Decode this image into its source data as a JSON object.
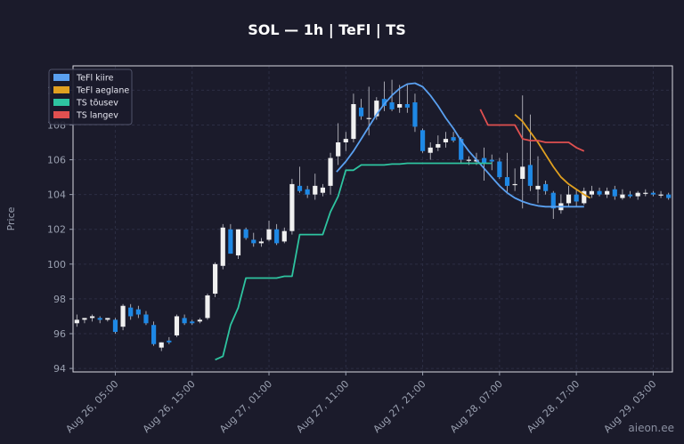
{
  "chart_data": {
    "type": "line",
    "title": "SOL — 1h  |  TeFl  |  TS",
    "ylabel": "Price",
    "xlabel": "",
    "ylim": [
      93.8,
      111.4
    ],
    "yticks": [
      94,
      96,
      98,
      100,
      102,
      104,
      106,
      108,
      110
    ],
    "xticks": [
      "Aug 26, 05:00",
      "Aug 26, 15:00",
      "Aug 27, 01:00",
      "Aug 27, 11:00",
      "Aug 27, 21:00",
      "Aug 28, 07:00",
      "Aug 28, 17:00",
      "Aug 29, 03:00"
    ],
    "xtick_index": [
      5,
      15,
      25,
      35,
      45,
      55,
      65,
      75
    ],
    "x_index_range": [
      -0.5,
      77.5
    ],
    "grid": true,
    "legend_position": "top-left",
    "candles": [
      [
        96.6,
        97.1,
        96.4,
        96.8
      ],
      [
        96.8,
        96.9,
        96.6,
        96.9
      ],
      [
        96.9,
        97.1,
        96.7,
        97.0
      ],
      [
        96.9,
        97.0,
        96.6,
        96.8
      ],
      [
        96.8,
        96.9,
        96.7,
        96.9
      ],
      [
        96.8,
        96.9,
        96.0,
        96.1
      ],
      [
        96.4,
        97.7,
        96.2,
        97.6
      ],
      [
        97.5,
        97.7,
        96.8,
        97.0
      ],
      [
        97.4,
        97.6,
        96.9,
        97.1
      ],
      [
        97.1,
        97.3,
        96.5,
        96.6
      ],
      [
        96.5,
        96.7,
        95.3,
        95.4
      ],
      [
        95.2,
        95.5,
        95.0,
        95.5
      ],
      [
        95.6,
        95.8,
        95.4,
        95.5
      ],
      [
        95.9,
        97.1,
        95.8,
        97.0
      ],
      [
        96.9,
        97.1,
        96.5,
        96.6
      ],
      [
        96.7,
        96.8,
        96.5,
        96.6
      ],
      [
        96.7,
        96.9,
        96.6,
        96.8
      ],
      [
        96.9,
        98.3,
        96.8,
        98.2
      ],
      [
        98.3,
        100.1,
        98.1,
        100.0
      ],
      [
        99.9,
        102.3,
        99.7,
        102.1
      ],
      [
        102.0,
        102.3,
        100.6,
        100.6
      ],
      [
        100.5,
        102.0,
        100.3,
        102.0
      ],
      [
        102.0,
        102.1,
        101.4,
        101.5
      ],
      [
        101.4,
        101.8,
        101.0,
        101.2
      ],
      [
        101.2,
        101.5,
        101.0,
        101.3
      ],
      [
        101.4,
        102.5,
        101.3,
        102.0
      ],
      [
        102.0,
        102.3,
        101.1,
        101.2
      ],
      [
        101.3,
        102.1,
        101.2,
        101.9
      ],
      [
        101.9,
        104.9,
        101.7,
        104.6
      ],
      [
        104.5,
        105.6,
        104.1,
        104.2
      ],
      [
        104.3,
        104.5,
        103.8,
        104.0
      ],
      [
        104.0,
        105.2,
        103.7,
        104.5
      ],
      [
        104.1,
        104.6,
        103.9,
        104.4
      ],
      [
        104.5,
        106.4,
        104.0,
        106.1
      ],
      [
        106.2,
        108.1,
        105.7,
        107.0
      ],
      [
        107.0,
        107.6,
        106.5,
        107.2
      ],
      [
        107.2,
        109.8,
        107.0,
        109.2
      ],
      [
        109.0,
        109.5,
        108.3,
        108.5
      ],
      [
        108.4,
        110.2,
        107.4,
        108.4
      ],
      [
        108.5,
        109.6,
        108.3,
        109.4
      ],
      [
        109.5,
        110.5,
        108.8,
        109.1
      ],
      [
        109.3,
        110.6,
        108.8,
        108.9
      ],
      [
        109.0,
        110.3,
        108.7,
        109.2
      ],
      [
        109.2,
        110.3,
        108.7,
        109.0
      ],
      [
        109.3,
        109.8,
        107.6,
        107.9
      ],
      [
        107.7,
        107.8,
        106.4,
        106.5
      ],
      [
        106.4,
        107.0,
        106.0,
        106.7
      ],
      [
        106.7,
        107.4,
        106.5,
        106.9
      ],
      [
        107.0,
        107.6,
        106.7,
        107.2
      ],
      [
        107.3,
        107.6,
        107.0,
        107.1
      ],
      [
        107.2,
        107.3,
        105.8,
        106.0
      ],
      [
        106.0,
        106.2,
        105.7,
        106.0
      ],
      [
        105.9,
        106.4,
        105.7,
        106.0
      ],
      [
        106.1,
        106.7,
        104.8,
        105.8
      ],
      [
        106.0,
        106.3,
        105.4,
        105.9
      ],
      [
        105.9,
        106.1,
        104.9,
        105.0
      ],
      [
        105.0,
        106.4,
        104.1,
        104.5
      ],
      [
        104.6,
        105.5,
        104.2,
        104.6
      ],
      [
        104.9,
        109.7,
        103.2,
        105.6
      ],
      [
        105.7,
        108.6,
        104.2,
        104.5
      ],
      [
        104.3,
        106.2,
        103.5,
        104.5
      ],
      [
        104.6,
        104.8,
        104.0,
        104.2
      ],
      [
        104.1,
        104.2,
        102.6,
        103.2
      ],
      [
        103.1,
        104.0,
        102.9,
        103.5
      ],
      [
        103.5,
        104.5,
        103.3,
        104.0
      ],
      [
        104.0,
        104.3,
        103.3,
        103.6
      ],
      [
        103.5,
        104.4,
        103.4,
        104.2
      ],
      [
        104.0,
        104.5,
        103.8,
        104.2
      ],
      [
        104.2,
        104.4,
        103.9,
        104.0
      ],
      [
        104.0,
        104.4,
        103.8,
        104.2
      ],
      [
        104.3,
        104.5,
        103.7,
        103.9
      ],
      [
        103.8,
        104.3,
        103.7,
        104.0
      ],
      [
        104.0,
        104.2,
        103.8,
        103.9
      ],
      [
        103.9,
        104.2,
        103.7,
        104.1
      ],
      [
        104.1,
        104.3,
        103.9,
        104.1
      ],
      [
        104.1,
        104.2,
        103.9,
        104.0
      ],
      [
        104.0,
        104.2,
        103.8,
        104.0
      ],
      [
        104.0,
        104.1,
        103.7,
        103.8
      ]
    ],
    "series": [
      {
        "name": "TeFl kiire",
        "color": "#5aa0f0",
        "points": [
          [
            33.8,
            105.3
          ],
          [
            35,
            105.9
          ],
          [
            36,
            106.5
          ],
          [
            37,
            107.2
          ],
          [
            38,
            107.9
          ],
          [
            39,
            108.6
          ],
          [
            40,
            109.2
          ],
          [
            41,
            109.7
          ],
          [
            42,
            110.1
          ],
          [
            43,
            110.35
          ],
          [
            44,
            110.4
          ],
          [
            45,
            110.2
          ],
          [
            46,
            109.7
          ],
          [
            47,
            109.1
          ],
          [
            48,
            108.4
          ],
          [
            49,
            107.8
          ],
          [
            50,
            107.1
          ],
          [
            51,
            106.5
          ],
          [
            52,
            106.0
          ],
          [
            53,
            105.5
          ],
          [
            54,
            105.0
          ],
          [
            55,
            104.5
          ],
          [
            56,
            104.1
          ],
          [
            57,
            103.8
          ],
          [
            58,
            103.6
          ],
          [
            59,
            103.45
          ],
          [
            60,
            103.35
          ],
          [
            61,
            103.3
          ],
          [
            62,
            103.3
          ],
          [
            63,
            103.3
          ],
          [
            64,
            103.3
          ],
          [
            65,
            103.3
          ],
          [
            66,
            103.3
          ]
        ]
      },
      {
        "name": "TeFl aeglane",
        "color": "#e0a020",
        "points": [
          [
            57,
            108.6
          ],
          [
            58,
            108.2
          ],
          [
            59,
            107.6
          ],
          [
            60,
            107.0
          ],
          [
            61,
            106.3
          ],
          [
            62,
            105.6
          ],
          [
            63,
            105.0
          ],
          [
            64,
            104.6
          ],
          [
            65,
            104.3
          ],
          [
            66,
            104.0
          ],
          [
            66.8,
            103.8
          ]
        ]
      },
      {
        "name": "TS tõusev",
        "color": "#2ec4a0",
        "points": [
          [
            18,
            94.5
          ],
          [
            19,
            94.7
          ],
          [
            20,
            96.5
          ],
          [
            21,
            97.5
          ],
          [
            22,
            99.2
          ],
          [
            23,
            99.2
          ],
          [
            24,
            99.2
          ],
          [
            25,
            99.2
          ],
          [
            26,
            99.2
          ],
          [
            27,
            99.3
          ],
          [
            28,
            99.3
          ],
          [
            29,
            101.7
          ],
          [
            30,
            101.7
          ],
          [
            31,
            101.7
          ],
          [
            32,
            101.7
          ],
          [
            33,
            103.0
          ],
          [
            34,
            103.9
          ],
          [
            35,
            105.4
          ],
          [
            36,
            105.4
          ],
          [
            37,
            105.7
          ],
          [
            38,
            105.7
          ],
          [
            39,
            105.7
          ],
          [
            40,
            105.7
          ],
          [
            41,
            105.75
          ],
          [
            42,
            105.75
          ],
          [
            43,
            105.8
          ],
          [
            44,
            105.8
          ],
          [
            45,
            105.8
          ],
          [
            46,
            105.8
          ],
          [
            47,
            105.8
          ],
          [
            48,
            105.8
          ],
          [
            49,
            105.8
          ],
          [
            50,
            105.8
          ],
          [
            51,
            105.8
          ],
          [
            52,
            105.8
          ],
          [
            53,
            105.8
          ],
          [
            54,
            105.8
          ]
        ]
      },
      {
        "name": "TS langev",
        "color": "#e05050",
        "points": [
          [
            52.5,
            108.9
          ],
          [
            53.5,
            108.0
          ],
          [
            54,
            108.0
          ],
          [
            55,
            108.0
          ],
          [
            56,
            108.0
          ],
          [
            57,
            108.0
          ],
          [
            58,
            107.2
          ],
          [
            59,
            107.1
          ],
          [
            60,
            107.1
          ],
          [
            61,
            107.0
          ],
          [
            62,
            107.0
          ],
          [
            63,
            107.0
          ],
          [
            64,
            107.0
          ],
          [
            65,
            106.7
          ],
          [
            66,
            106.5
          ]
        ]
      }
    ],
    "up_color": "#f0f0f0",
    "down_color": "#1e88e5"
  },
  "watermark": "aieon.ee"
}
